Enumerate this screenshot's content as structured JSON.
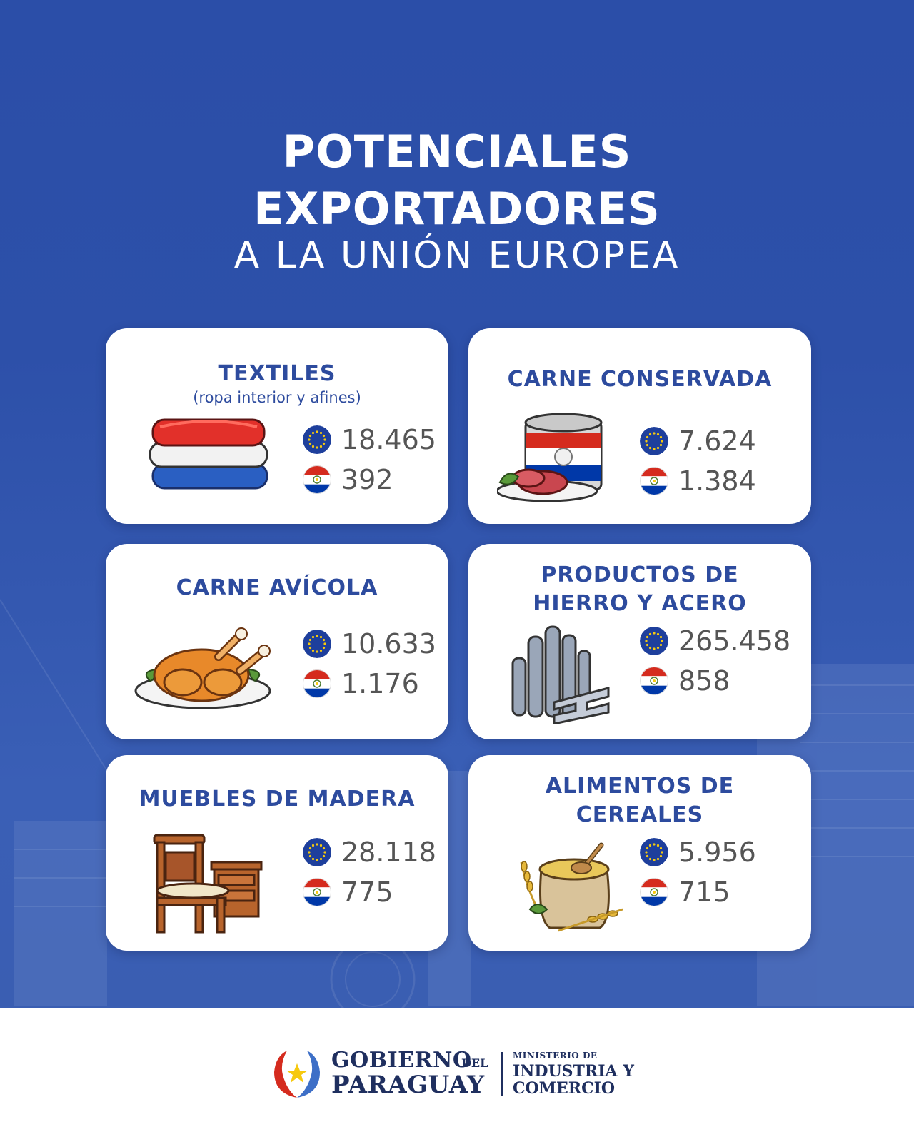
{
  "title": {
    "line1": "POTENCIALES",
    "line2": "EXPORTADORES",
    "line3": "A LA UNIÓN EUROPEA"
  },
  "colors": {
    "background_blue": "#2d50a9",
    "card_title_blue": "#2d4b9e",
    "value_gray": "#555555",
    "eu_flag_blue": "#1e3f9c",
    "eu_star_yellow": "#f6c90e",
    "py_red": "#d52b1e",
    "py_blue": "#0038a8"
  },
  "legend_icons": {
    "eu": "eu-flag-icon",
    "paraguay": "paraguay-flag-icon"
  },
  "cards": [
    {
      "title": "TEXTILES",
      "subtitle": "(ropa interior y afines)",
      "icon": "folded-textiles-icon",
      "eu_value": "18.465",
      "py_value": "392"
    },
    {
      "title": "CARNE CONSERVADA",
      "subtitle": "",
      "icon": "canned-meat-icon",
      "eu_value": "7.624",
      "py_value": "1.384"
    },
    {
      "title": "CARNE AVÍCOLA",
      "subtitle": "",
      "icon": "roast-chicken-icon",
      "eu_value": "10.633",
      "py_value": "1.176"
    },
    {
      "title": "PRODUCTOS DE",
      "title2": "HIERRO Y ACERO",
      "icon": "steel-bars-icon",
      "eu_value": "265.458",
      "py_value": "858"
    },
    {
      "title": "MUEBLES DE MADERA",
      "subtitle": "",
      "icon": "wooden-furniture-icon",
      "eu_value": "28.118",
      "py_value": "775"
    },
    {
      "title": "ALIMENTOS DE",
      "title2": "CEREALES",
      "icon": "cereal-sack-icon",
      "eu_value": "5.956",
      "py_value": "715"
    }
  ],
  "footer": {
    "gobierno": "GOBIERNO",
    "del": "DEL",
    "paraguay": "PARAGUAY",
    "ministerio": "MINISTERIO DE",
    "industria": "INDUSTRIA Y",
    "comercio": "COMERCIO"
  }
}
